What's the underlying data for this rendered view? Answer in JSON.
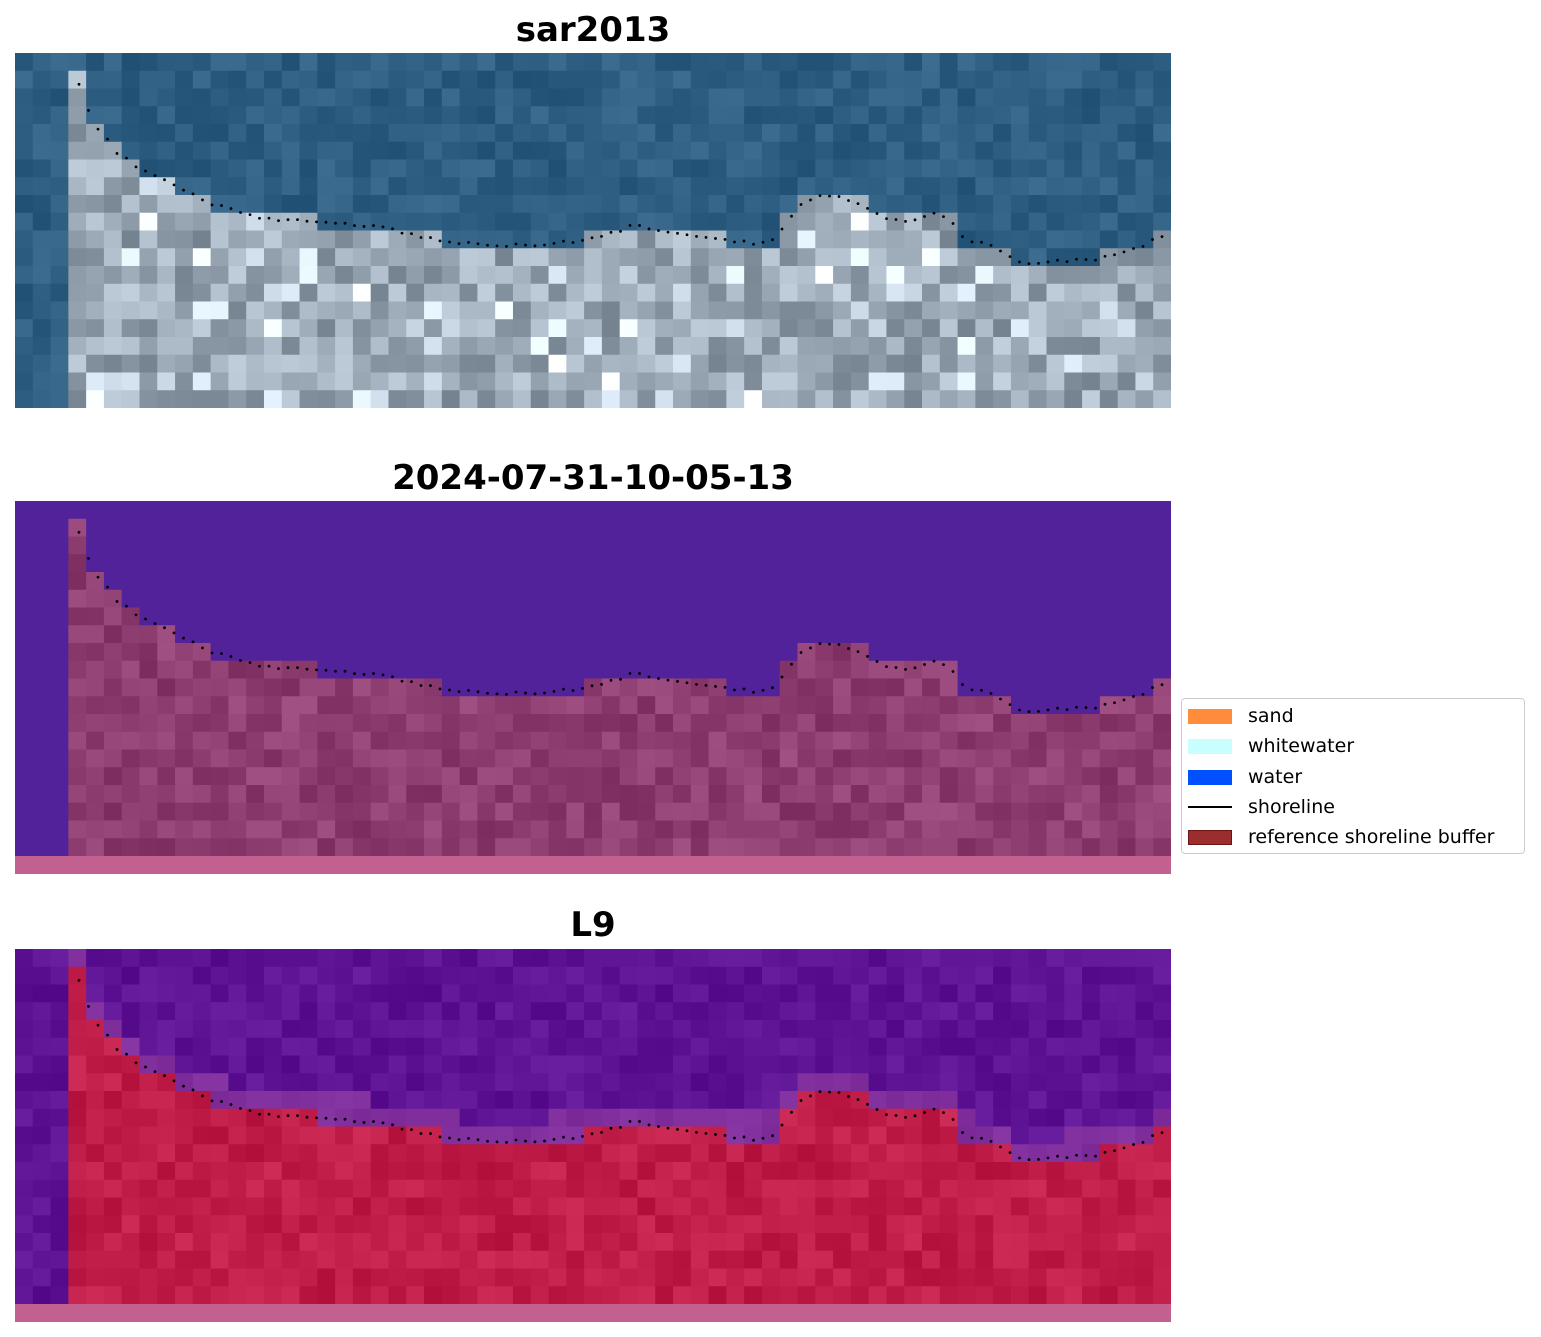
{
  "panels": [
    {
      "id": "sar",
      "title": "sar2013"
    },
    {
      "id": "classified",
      "title": "2024-07-31-10-05-13"
    },
    {
      "id": "l9",
      "title": "L9"
    }
  ],
  "legend": {
    "items": [
      {
        "label": "sand",
        "color": "#ff8c3a",
        "kind": "patch"
      },
      {
        "label": "whitewater",
        "color": "#c8fffe",
        "kind": "patch"
      },
      {
        "label": "water",
        "color": "#0050ff",
        "kind": "patch"
      },
      {
        "label": "shoreline",
        "color": "#000000",
        "kind": "line"
      },
      {
        "label": "reference shoreline buffer",
        "color": "#9b2d2d",
        "kind": "patch"
      }
    ]
  },
  "colors": {
    "sar_water": "#2e5e82",
    "sar_land": "#9aa8b5",
    "class_water": "#52229a",
    "class_land": "#8f3e72",
    "l9_water": "#5e1395",
    "l9_land": "#c01d48",
    "bottom_strip": "#c2608f"
  }
}
